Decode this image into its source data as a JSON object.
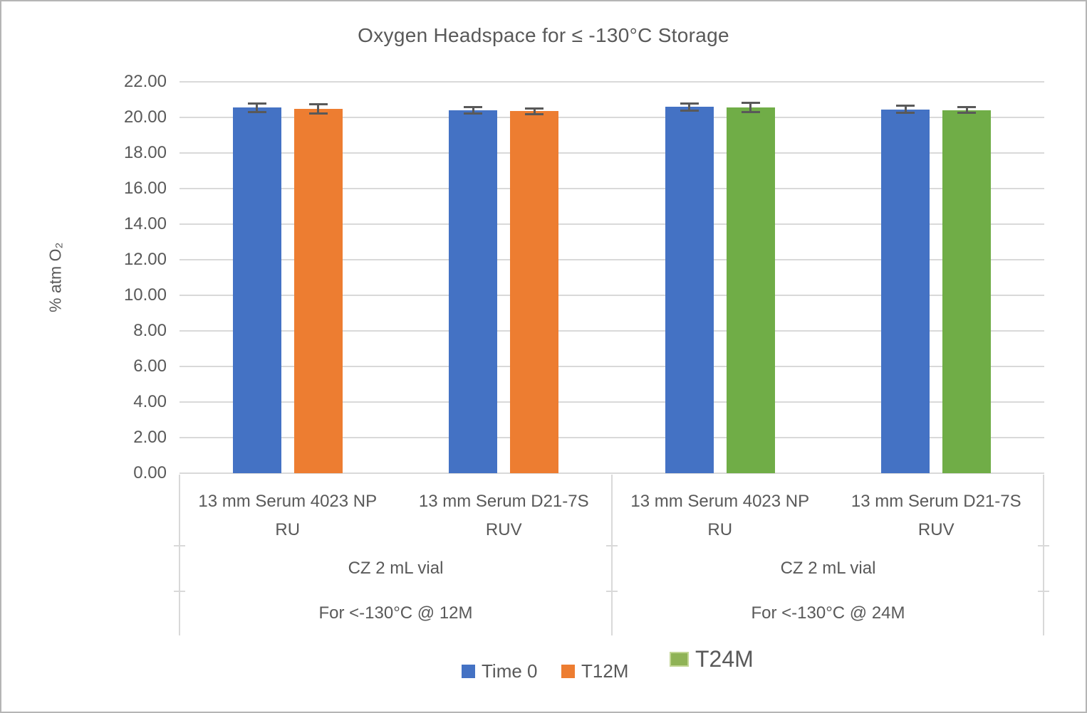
{
  "chart_data": {
    "type": "bar",
    "title": "Oxygen Headspace for ≤ -130°C Storage",
    "ylabel": "% atm O₂",
    "ylim": [
      0,
      22
    ],
    "ytick_step": 2,
    "ytick_decimals": 2,
    "grid": true,
    "legend_position": "bottom",
    "axis_text_color": "#595959",
    "gridline_color": "#d9d9d9",
    "error_bar_color": "#595959",
    "categories": [
      "13 mm Serum 4023 NP RU",
      "13 mm Serum D21-7S RUV",
      "13 mm Serum 4023 NP RU",
      "13 mm Serum D21-7S RUV"
    ],
    "category_groups": [
      {
        "vial": "CZ 2 mL vial",
        "condition": "For <-130°C @ 12M",
        "category_indexes": [
          0,
          1
        ]
      },
      {
        "vial": "CZ 2 mL vial",
        "condition": "For <-130°C @ 24M",
        "category_indexes": [
          2,
          3
        ]
      }
    ],
    "series": [
      {
        "name": "Time 0",
        "color": "#4472C4",
        "values": [
          20.55,
          20.4,
          20.6,
          20.45
        ],
        "errors": [
          0.25,
          0.2,
          0.22,
          0.22
        ]
      },
      {
        "name": "T12M",
        "color": "#ED7D31",
        "values": [
          20.5,
          20.35,
          null,
          null
        ],
        "errors": [
          0.28,
          0.18,
          null,
          null
        ]
      },
      {
        "name": "T24M",
        "color": "#70AD47",
        "values": [
          null,
          null,
          20.55,
          20.42
        ],
        "errors": [
          null,
          null,
          0.28,
          0.18
        ]
      }
    ]
  },
  "legend": {
    "items": [
      {
        "label": "Time 0",
        "color": "#4472C4",
        "emphasized": false
      },
      {
        "label": "T12M",
        "color": "#ED7D31",
        "emphasized": false
      },
      {
        "label": "T24M",
        "color": "#8FB356",
        "emphasized": true
      }
    ]
  }
}
